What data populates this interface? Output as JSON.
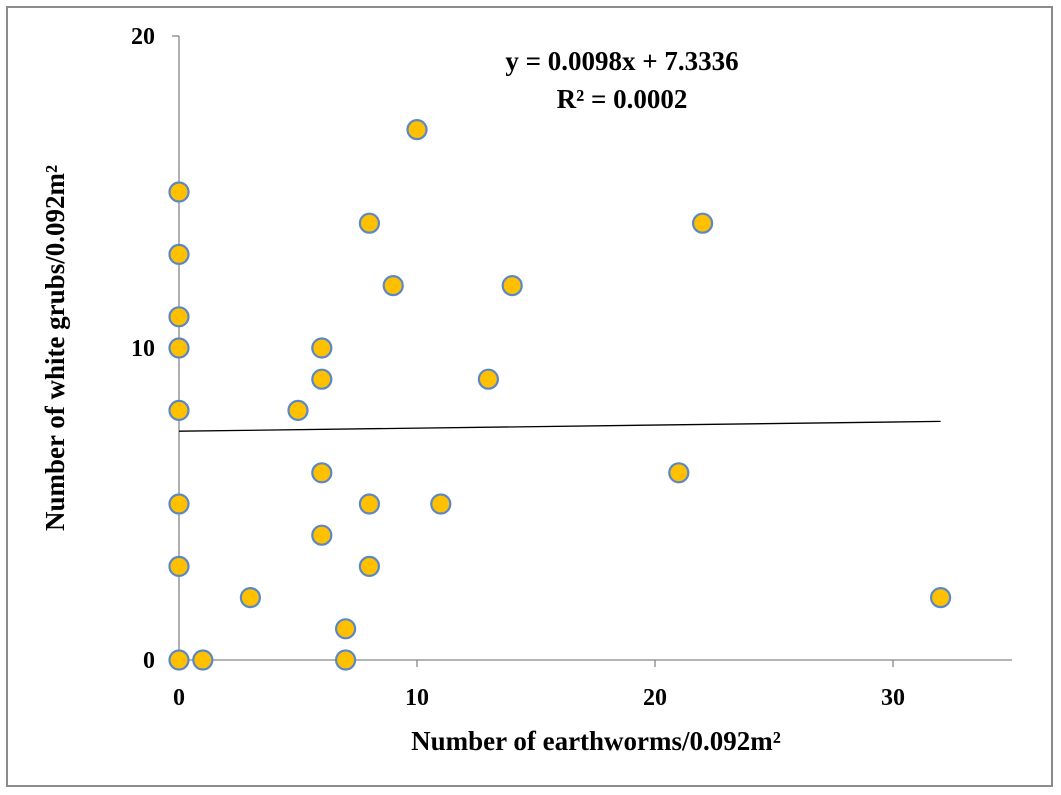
{
  "chart_data": {
    "type": "scatter",
    "xlabel": "Number of earthworms/0.092m²",
    "ylabel": "Number of white grubs/0.092m²",
    "xlim": [
      0,
      35
    ],
    "ylim": [
      0,
      20
    ],
    "x_ticks": [
      "0",
      "10",
      "20",
      "30"
    ],
    "y_ticks": [
      "0",
      "10",
      "20"
    ],
    "x_tick_values": [
      0,
      10,
      20,
      30
    ],
    "y_tick_values": [
      0,
      10,
      20
    ],
    "trendline": {
      "type": "linear",
      "slope": 0.0098,
      "intercept": 7.3336,
      "x_range": [
        0,
        32
      ],
      "equation": "y = 0.0098x + 7.3336",
      "r_squared": "R² = 0.0002"
    },
    "points": [
      {
        "x": 0,
        "y": 15
      },
      {
        "x": 0,
        "y": 13
      },
      {
        "x": 0,
        "y": 11
      },
      {
        "x": 0,
        "y": 10
      },
      {
        "x": 0,
        "y": 8
      },
      {
        "x": 0,
        "y": 5
      },
      {
        "x": 0,
        "y": 3
      },
      {
        "x": 0,
        "y": 0
      },
      {
        "x": 1,
        "y": 0
      },
      {
        "x": 3,
        "y": 2
      },
      {
        "x": 5,
        "y": 8
      },
      {
        "x": 6,
        "y": 10
      },
      {
        "x": 6,
        "y": 9
      },
      {
        "x": 6,
        "y": 6
      },
      {
        "x": 6,
        "y": 4
      },
      {
        "x": 7,
        "y": 1
      },
      {
        "x": 7,
        "y": 0
      },
      {
        "x": 8,
        "y": 14
      },
      {
        "x": 8,
        "y": 5
      },
      {
        "x": 8,
        "y": 3
      },
      {
        "x": 9,
        "y": 12
      },
      {
        "x": 10,
        "y": 17
      },
      {
        "x": 11,
        "y": 5
      },
      {
        "x": 13,
        "y": 9
      },
      {
        "x": 14,
        "y": 12
      },
      {
        "x": 21,
        "y": 6
      },
      {
        "x": 22,
        "y": 14
      },
      {
        "x": 32,
        "y": 2
      }
    ],
    "colors": {
      "marker_fill": "#FFC000",
      "marker_stroke": "#5B87C5",
      "trendline": "#000000",
      "axis": "#868686"
    },
    "grid": false,
    "legend": "none"
  }
}
